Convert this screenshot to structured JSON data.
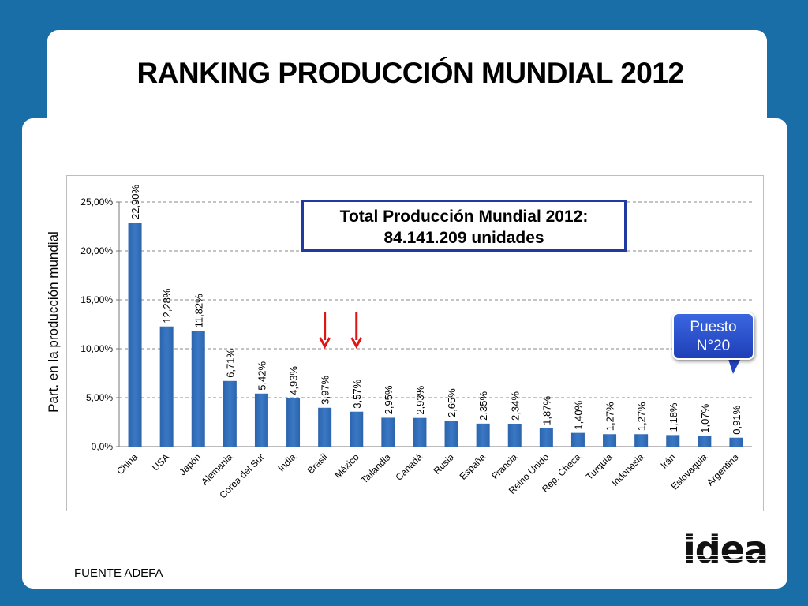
{
  "title": "RANKING PRODUCCIÓN MUNDIAL 2012",
  "total_box": {
    "line1": "Total Producción Mundial 2012:",
    "line2": "84.141.209 unidades"
  },
  "callout": {
    "line1": "Puesto",
    "line2": "N°20"
  },
  "footer": {
    "source": "FUENTE ADEFA"
  },
  "logo": {
    "text": "idea"
  },
  "colors": {
    "background": "#1a6ea8",
    "bar": "#3a78c4",
    "arrow": "#e01515",
    "box_border": "#1f3aa0",
    "callout": "#2a4fd0"
  },
  "chart_data": {
    "type": "bar",
    "ylabel": "Part. en la producción mundial",
    "xlabel": "",
    "ylim": [
      0,
      25
    ],
    "y_ticks": [
      "0,0%",
      "5,00%",
      "10,00%",
      "15,00%",
      "20,00%",
      "25,00%"
    ],
    "grid": true,
    "categories": [
      "China",
      "USA",
      "Japón",
      "Alemania",
      "Corea del Sur",
      "India",
      "Brasil",
      "México",
      "Tailandia",
      "Canadá",
      "Rusia",
      "España",
      "Francia",
      "Reino Unido",
      "Rep. Checa",
      "Turquía",
      "Indonesia",
      "Irán",
      "Eslovaquia",
      "Argentina"
    ],
    "values": [
      22.9,
      12.28,
      11.82,
      6.71,
      5.42,
      4.93,
      3.97,
      3.57,
      2.95,
      2.93,
      2.65,
      2.35,
      2.34,
      1.87,
      1.4,
      1.27,
      1.27,
      1.18,
      1.07,
      0.91
    ],
    "value_labels": [
      "22,90%",
      "12,28%",
      "11,82%",
      "6,71%",
      "5,42%",
      "4,93%",
      "3,97%",
      "3,57%",
      "2,95%",
      "2,93%",
      "2,65%",
      "2,35%",
      "2,34%",
      "1,87%",
      "1,40%",
      "1,27%",
      "1,27%",
      "1,18%",
      "1,07%",
      "0,91%"
    ],
    "arrow_categories": [
      "Brasil",
      "México"
    ]
  }
}
